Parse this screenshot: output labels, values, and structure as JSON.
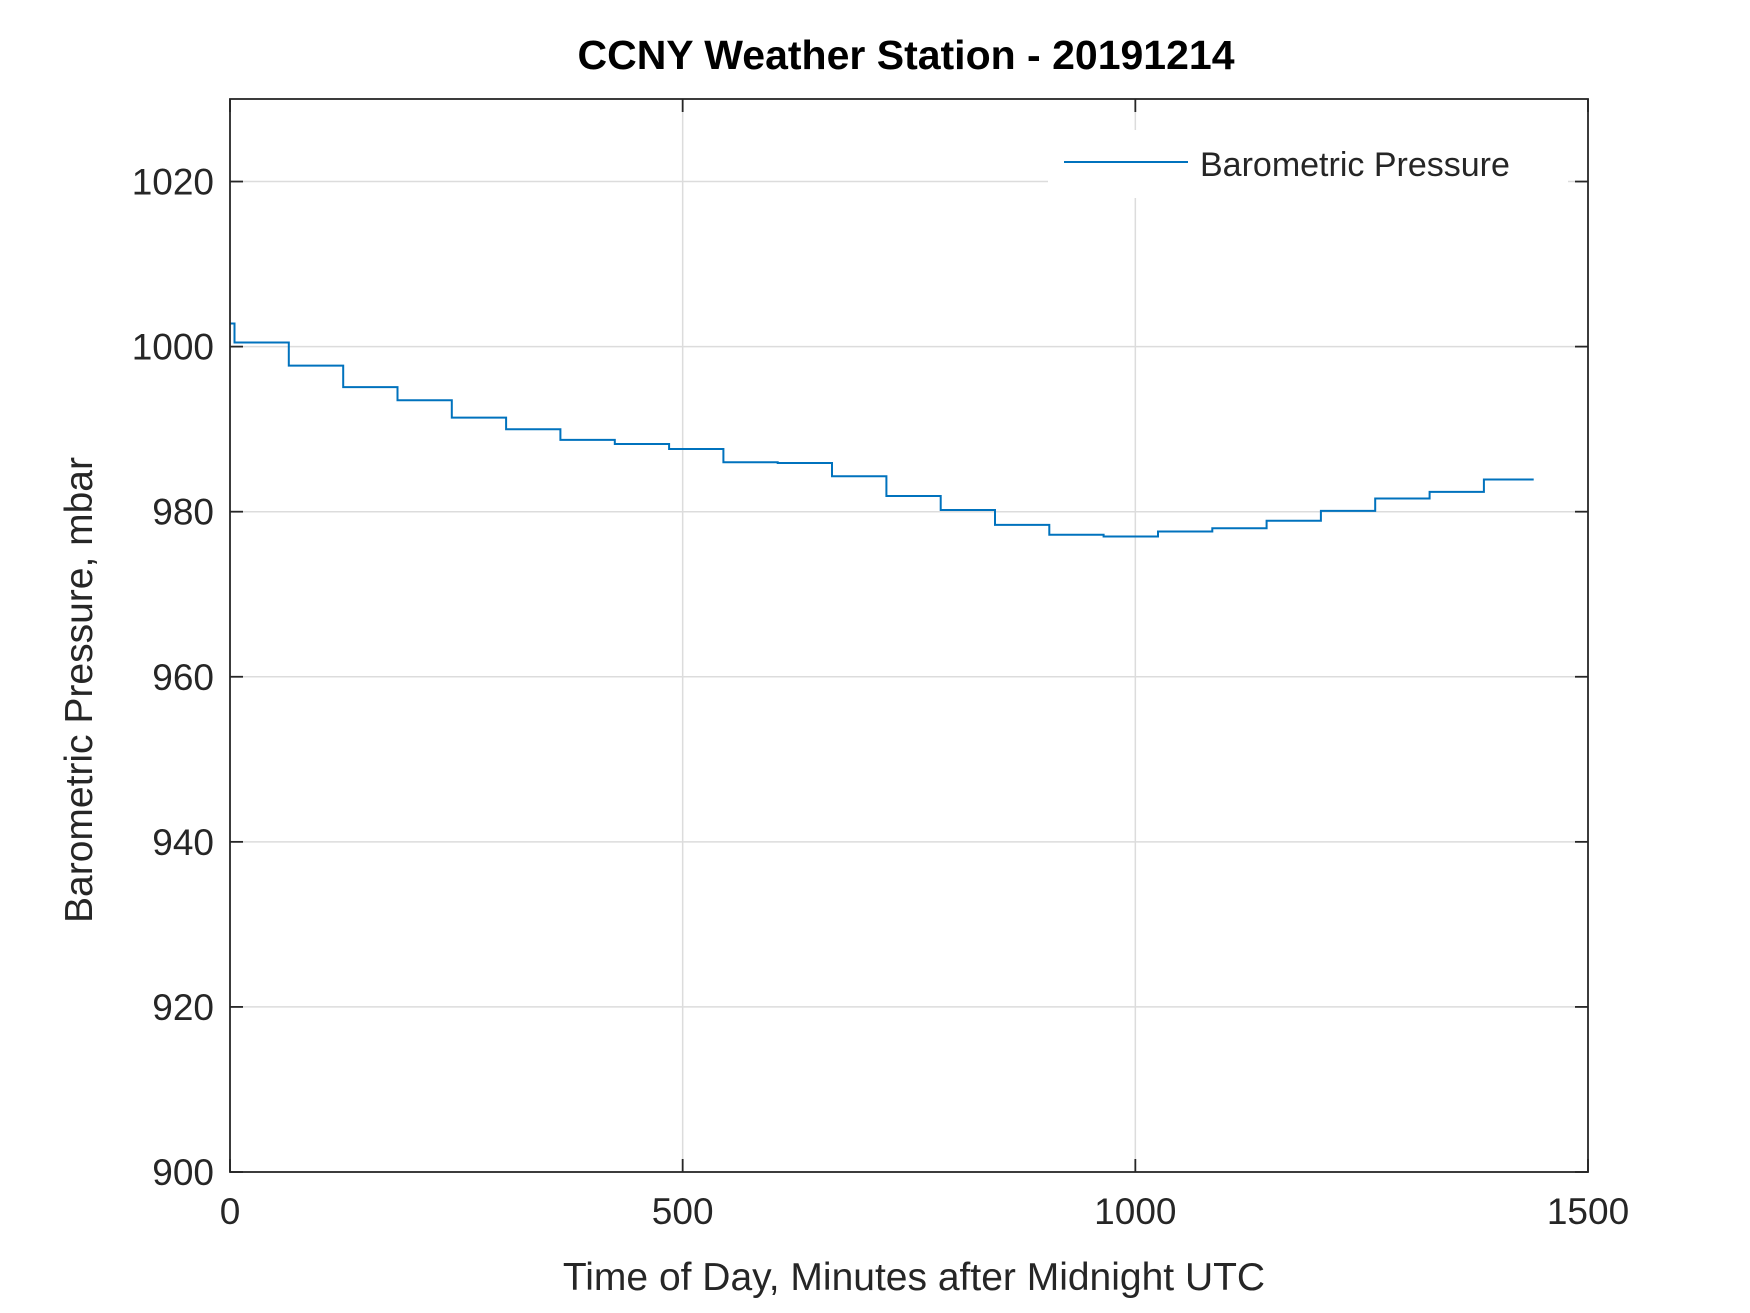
{
  "chart_data": {
    "type": "line",
    "title": "CCNY Weather Station - 20191214",
    "xlabel": "Time of Day, Minutes after Midnight UTC",
    "ylabel": "Barometric Pressure, mbar",
    "xlim": [
      0,
      1500
    ],
    "ylim": [
      900,
      1030
    ],
    "xticks": [
      0,
      500,
      1000,
      1500
    ],
    "xtick_labels": [
      "0",
      "500",
      "1000",
      "1500"
    ],
    "yticks": [
      900,
      920,
      940,
      960,
      980,
      1000,
      1020
    ],
    "ytick_labels": [
      "900",
      "920",
      "940",
      "960",
      "980",
      "1000",
      "1020"
    ],
    "grid": true,
    "legend_position": "top-right",
    "series": [
      {
        "name": "Barometric Pressure",
        "color": "#0072BD",
        "step": true,
        "x": [
          0,
          5,
          65,
          125,
          185,
          245,
          305,
          365,
          425,
          485,
          545,
          605,
          665,
          725,
          785,
          845,
          905,
          965,
          1025,
          1085,
          1145,
          1205,
          1265,
          1325,
          1385,
          1440
        ],
        "y": [
          1002.8,
          1000.5,
          997.7,
          995.1,
          993.5,
          991.4,
          990.0,
          988.7,
          988.2,
          987.6,
          986.0,
          985.9,
          984.3,
          981.9,
          980.2,
          978.4,
          977.2,
          977.0,
          977.6,
          978.0,
          978.9,
          980.1,
          981.6,
          982.4,
          983.9,
          983.9
        ]
      }
    ]
  }
}
